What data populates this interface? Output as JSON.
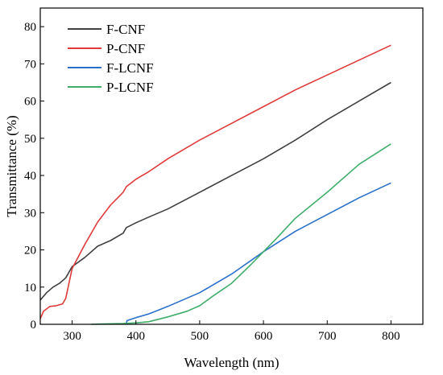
{
  "chart_data": {
    "type": "line",
    "xlabel": "Wavelength (nm)",
    "ylabel": "Transmittance (%)",
    "xlim": [
      250,
      850
    ],
    "ylim": [
      0,
      85
    ],
    "x_ticks": [
      300,
      400,
      500,
      600,
      700,
      800
    ],
    "y_ticks": [
      0,
      10,
      20,
      30,
      40,
      50,
      60,
      70,
      80
    ],
    "grid": false,
    "legend_position": "top-left",
    "series": [
      {
        "name": "F-CNF",
        "color": "#404040",
        "points": [
          [
            250,
            6.5
          ],
          [
            260,
            8.5
          ],
          [
            270,
            10
          ],
          [
            280,
            11
          ],
          [
            290,
            12.5
          ],
          [
            300,
            15.5
          ],
          [
            320,
            18
          ],
          [
            340,
            21
          ],
          [
            360,
            22.5
          ],
          [
            380,
            24.5
          ],
          [
            385,
            26
          ],
          [
            400,
            27.3
          ],
          [
            420,
            28.8
          ],
          [
            450,
            31
          ],
          [
            500,
            35.5
          ],
          [
            550,
            40
          ],
          [
            600,
            44.5
          ],
          [
            650,
            49.5
          ],
          [
            700,
            55
          ],
          [
            750,
            60
          ],
          [
            800,
            65
          ]
        ]
      },
      {
        "name": "P-CNF",
        "color": "#e03a3a",
        "points": [
          [
            250,
            1.5
          ],
          [
            255,
            3.5
          ],
          [
            265,
            4.8
          ],
          [
            275,
            5
          ],
          [
            285,
            5.5
          ],
          [
            290,
            7
          ],
          [
            295,
            11
          ],
          [
            300,
            15
          ],
          [
            320,
            21.5
          ],
          [
            340,
            27.5
          ],
          [
            360,
            32
          ],
          [
            380,
            35.5
          ],
          [
            385,
            37
          ],
          [
            400,
            39
          ],
          [
            420,
            41
          ],
          [
            450,
            44.5
          ],
          [
            500,
            49.5
          ],
          [
            550,
            54
          ],
          [
            600,
            58.5
          ],
          [
            650,
            63
          ],
          [
            700,
            67
          ],
          [
            750,
            71
          ],
          [
            800,
            75
          ]
        ]
      },
      {
        "name": "F-LCNF",
        "color": "#2a6fc9",
        "points": [
          [
            385,
            0.2
          ],
          [
            386,
            1
          ],
          [
            400,
            1.8
          ],
          [
            420,
            2.8
          ],
          [
            450,
            4.8
          ],
          [
            500,
            8.5
          ],
          [
            550,
            13.5
          ],
          [
            600,
            19.5
          ],
          [
            650,
            25
          ],
          [
            700,
            29.5
          ],
          [
            750,
            34
          ],
          [
            800,
            38
          ]
        ]
      },
      {
        "name": "P-LCNF",
        "color": "#3fae6a",
        "points": [
          [
            330,
            0
          ],
          [
            350,
            0.1
          ],
          [
            380,
            0.2
          ],
          [
            400,
            0.4
          ],
          [
            420,
            0.7
          ],
          [
            450,
            2
          ],
          [
            480,
            3.5
          ],
          [
            500,
            5
          ],
          [
            520,
            7.5
          ],
          [
            550,
            11
          ],
          [
            580,
            16
          ],
          [
            600,
            19.5
          ],
          [
            620,
            23
          ],
          [
            650,
            28.5
          ],
          [
            700,
            35.5
          ],
          [
            750,
            43
          ],
          [
            800,
            48.5
          ]
        ]
      }
    ]
  }
}
